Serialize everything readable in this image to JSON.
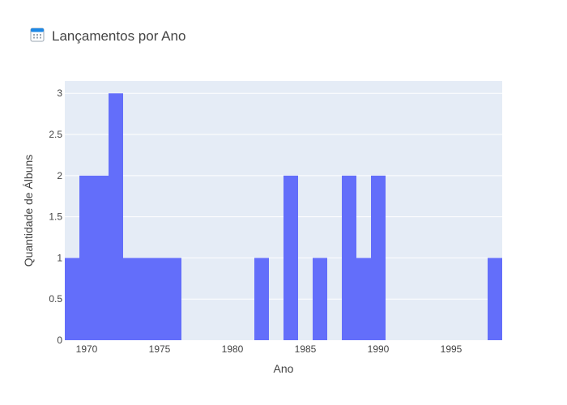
{
  "chart_data": {
    "type": "bar",
    "title": "Lançamentos por Ano",
    "title_icon": "calendar-icon",
    "xlabel": "Ano",
    "ylabel": "Quantidade de Álbuns",
    "bin_width": 1,
    "x": [
      1969,
      1970,
      1971,
      1972,
      1973,
      1974,
      1975,
      1976,
      1982,
      1984,
      1986,
      1988,
      1989,
      1990,
      1998
    ],
    "values": [
      1,
      2,
      2,
      3,
      1,
      1,
      1,
      1,
      1,
      2,
      1,
      2,
      1,
      2,
      1
    ],
    "xlim": [
      1968.5,
      1998.5
    ],
    "ylim": [
      0,
      3.15
    ],
    "x_ticks": [
      1970,
      1975,
      1980,
      1985,
      1990,
      1995
    ],
    "x_tick_labels": [
      "1970",
      "1975",
      "1980",
      "1985",
      "1990",
      "1995"
    ],
    "y_ticks": [
      0,
      0.5,
      1,
      1.5,
      2,
      2.5,
      3
    ],
    "y_tick_labels": [
      "0",
      "0.5",
      "1",
      "1.5",
      "2",
      "2.5",
      "3"
    ],
    "grid": true,
    "legend": "none",
    "colors": {
      "bar": "#636efa",
      "plot_bg": "#e5ecf6",
      "grid": "#ffffff",
      "text": "#444444",
      "icon": "#1e88e5"
    }
  }
}
